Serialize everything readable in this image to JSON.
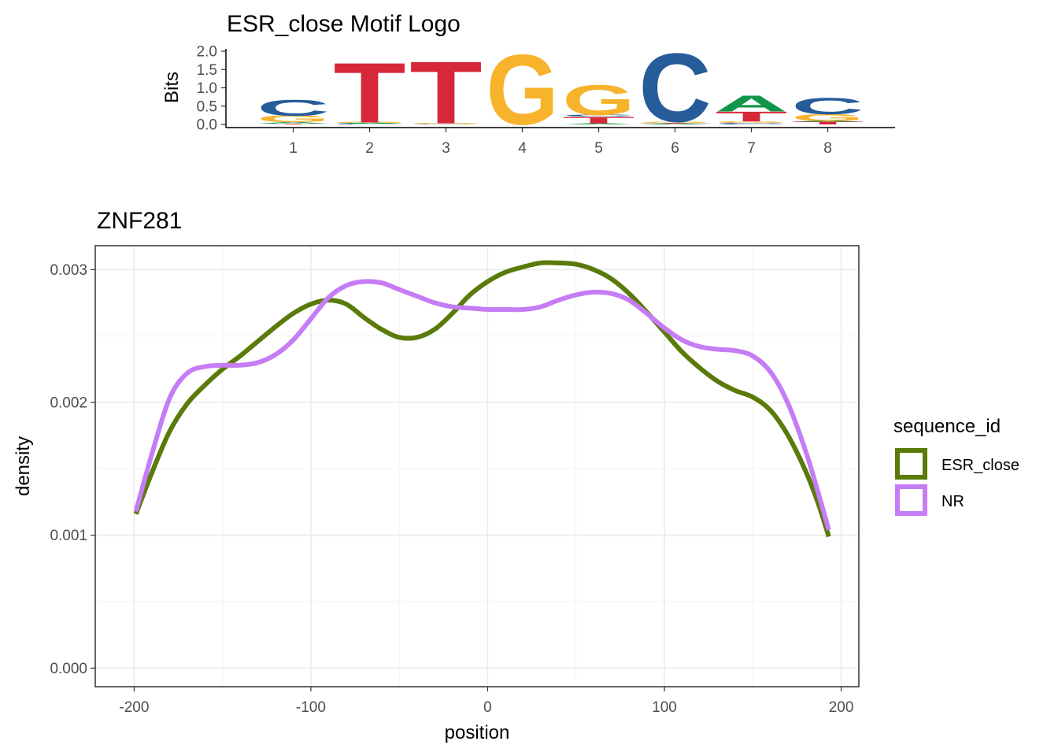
{
  "chart_data": [
    {
      "type": "logo",
      "title": "ESR_close Motif Logo",
      "ylabel": "Bits",
      "ylim": [
        0,
        2.0
      ],
      "yticks": [
        "0.0",
        "0.5",
        "1.0",
        "1.5",
        "2.0"
      ],
      "positions": [
        "1",
        "2",
        "3",
        "4",
        "5",
        "6",
        "7",
        "8"
      ],
      "letter_colors": {
        "A": "#109648",
        "C": "#255C99",
        "G": "#F7B32B",
        "T": "#D62839"
      },
      "columns": [
        [
          {
            "letter": "T",
            "bits": 0.02
          },
          {
            "letter": "A",
            "bits": 0.04
          },
          {
            "letter": "G",
            "bits": 0.18
          },
          {
            "letter": "C",
            "bits": 0.44
          }
        ],
        [
          {
            "letter": "C",
            "bits": 0.02
          },
          {
            "letter": "A",
            "bits": 0.02
          },
          {
            "letter": "G",
            "bits": 0.02
          },
          {
            "letter": "T",
            "bits": 1.68
          }
        ],
        [
          {
            "letter": "C",
            "bits": 0.01
          },
          {
            "letter": "G",
            "bits": 0.02
          },
          {
            "letter": "T",
            "bits": 1.75
          }
        ],
        [
          {
            "letter": "G",
            "bits": 1.97
          }
        ],
        [
          {
            "letter": "A",
            "bits": 0.03
          },
          {
            "letter": "T",
            "bits": 0.18
          },
          {
            "letter": "C",
            "bits": 0.05
          },
          {
            "letter": "G",
            "bits": 0.84
          }
        ],
        [
          {
            "letter": "A",
            "bits": 0.02
          },
          {
            "letter": "T",
            "bits": 0.02
          },
          {
            "letter": "G",
            "bits": 0.03
          },
          {
            "letter": "C",
            "bits": 1.93
          }
        ],
        [
          {
            "letter": "C",
            "bits": 0.04
          },
          {
            "letter": "G",
            "bits": 0.04
          },
          {
            "letter": "T",
            "bits": 0.28
          },
          {
            "letter": "A",
            "bits": 0.44
          }
        ],
        [
          {
            "letter": "T",
            "bits": 0.08
          },
          {
            "letter": "A",
            "bits": 0.02
          },
          {
            "letter": "G",
            "bits": 0.18
          },
          {
            "letter": "C",
            "bits": 0.46
          }
        ]
      ]
    },
    {
      "type": "line",
      "title": "ZNF281",
      "xlabel": "position",
      "ylabel": "density",
      "xlim": [
        -222,
        210
      ],
      "ylim": [
        -0.00014,
        0.00318
      ],
      "xticks": [
        -200,
        -100,
        0,
        100,
        200
      ],
      "xtick_labels": [
        "-200",
        "-100",
        "0",
        "100",
        "200"
      ],
      "yticks": [
        0,
        0.001,
        0.002,
        0.003
      ],
      "ytick_labels": [
        "0.000",
        "0.001",
        "0.002",
        "0.003"
      ],
      "grid": true,
      "legend_title": "sequence_id",
      "legend_position": "right",
      "series": [
        {
          "name": "ESR_close",
          "color": "#5a7a0a",
          "points": [
            [
              -199,
              0.00116
            ],
            [
              -190,
              0.00147
            ],
            [
              -180,
              0.00178
            ],
            [
              -170,
              0.00199
            ],
            [
              -160,
              0.00213
            ],
            [
              -150,
              0.00225
            ],
            [
              -140,
              0.00235
            ],
            [
              -130,
              0.00246
            ],
            [
              -120,
              0.00257
            ],
            [
              -110,
              0.00267
            ],
            [
              -100,
              0.00274
            ],
            [
              -90,
              0.00277
            ],
            [
              -80,
              0.00274
            ],
            [
              -70,
              0.00264
            ],
            [
              -60,
              0.00255
            ],
            [
              -50,
              0.00249
            ],
            [
              -40,
              0.00249
            ],
            [
              -30,
              0.00255
            ],
            [
              -20,
              0.00267
            ],
            [
              -10,
              0.00281
            ],
            [
              0,
              0.00291
            ],
            [
              10,
              0.00298
            ],
            [
              20,
              0.00302
            ],
            [
              30,
              0.00305
            ],
            [
              40,
              0.00305
            ],
            [
              50,
              0.00304
            ],
            [
              60,
              0.003
            ],
            [
              70,
              0.00293
            ],
            [
              80,
              0.00282
            ],
            [
              90,
              0.00268
            ],
            [
              100,
              0.00253
            ],
            [
              110,
              0.00238
            ],
            [
              120,
              0.00226
            ],
            [
              130,
              0.00216
            ],
            [
              140,
              0.00209
            ],
            [
              150,
              0.00204
            ],
            [
              160,
              0.00194
            ],
            [
              170,
              0.00175
            ],
            [
              180,
              0.00148
            ],
            [
              187,
              0.00124
            ],
            [
              193,
              0.00099
            ]
          ]
        },
        {
          "name": "NR",
          "color": "#c57cf5",
          "points": [
            [
              -199,
              0.00118
            ],
            [
              -190,
              0.00161
            ],
            [
              -180,
              0.00203
            ],
            [
              -170,
              0.00222
            ],
            [
              -160,
              0.00227
            ],
            [
              -150,
              0.00228
            ],
            [
              -140,
              0.00228
            ],
            [
              -130,
              0.0023
            ],
            [
              -120,
              0.00236
            ],
            [
              -110,
              0.00247
            ],
            [
              -100,
              0.00263
            ],
            [
              -90,
              0.00279
            ],
            [
              -80,
              0.00288
            ],
            [
              -70,
              0.00291
            ],
            [
              -60,
              0.0029
            ],
            [
              -50,
              0.00285
            ],
            [
              -40,
              0.0028
            ],
            [
              -30,
              0.00275
            ],
            [
              -20,
              0.00272
            ],
            [
              -10,
              0.00271
            ],
            [
              0,
              0.0027
            ],
            [
              10,
              0.0027
            ],
            [
              20,
              0.0027
            ],
            [
              30,
              0.00272
            ],
            [
              40,
              0.00277
            ],
            [
              50,
              0.00281
            ],
            [
              60,
              0.00283
            ],
            [
              70,
              0.00282
            ],
            [
              80,
              0.00277
            ],
            [
              90,
              0.00267
            ],
            [
              100,
              0.00256
            ],
            [
              110,
              0.00247
            ],
            [
              120,
              0.00242
            ],
            [
              130,
              0.0024
            ],
            [
              140,
              0.00239
            ],
            [
              150,
              0.00235
            ],
            [
              160,
              0.00223
            ],
            [
              170,
              0.00199
            ],
            [
              180,
              0.00163
            ],
            [
              187,
              0.00132
            ],
            [
              193,
              0.00104
            ]
          ]
        }
      ]
    }
  ]
}
